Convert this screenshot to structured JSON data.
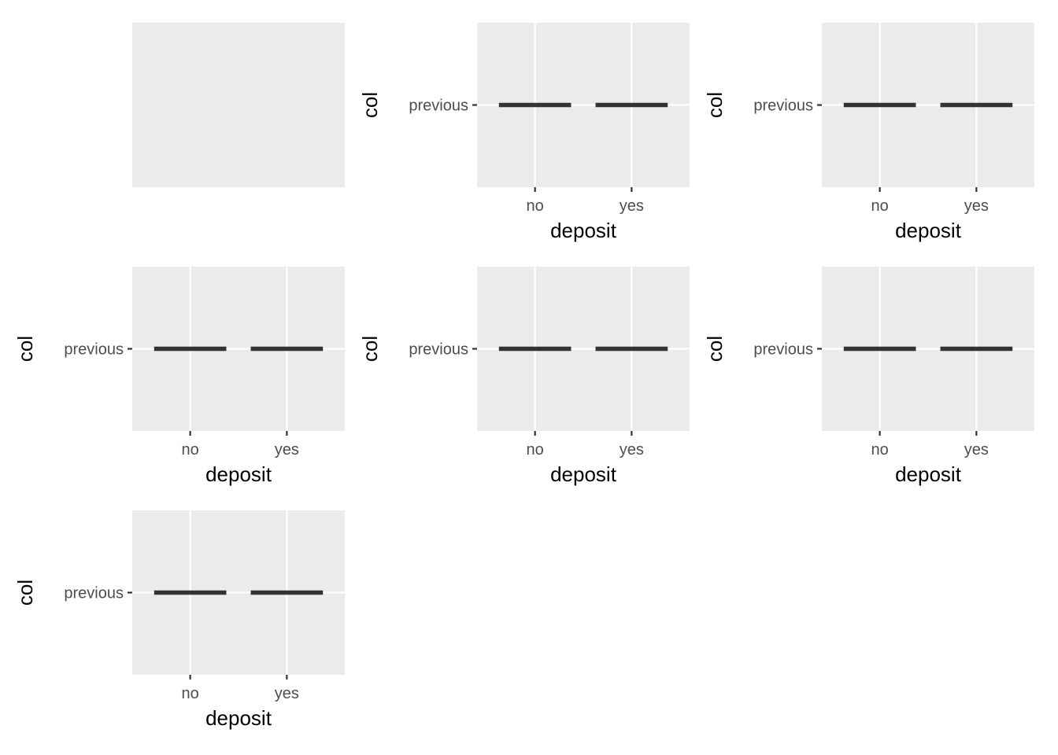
{
  "chart_data": [
    {
      "type": "blank",
      "title": "",
      "xlabel": "",
      "ylabel": "",
      "grid": true
    },
    {
      "type": "crossbar",
      "title": "",
      "xlabel": "deposit",
      "ylabel": "col",
      "categories": [
        "no",
        "yes"
      ],
      "y_categories": [
        "previous"
      ],
      "values": [
        {
          "x": "no",
          "y": "previous"
        },
        {
          "x": "yes",
          "y": "previous"
        }
      ],
      "grid": true
    },
    {
      "type": "crossbar",
      "title": "",
      "xlabel": "deposit",
      "ylabel": "col",
      "categories": [
        "no",
        "yes"
      ],
      "y_categories": [
        "previous"
      ],
      "values": [
        {
          "x": "no",
          "y": "previous"
        },
        {
          "x": "yes",
          "y": "previous"
        }
      ],
      "grid": true
    },
    {
      "type": "crossbar",
      "title": "",
      "xlabel": "deposit",
      "ylabel": "col",
      "categories": [
        "no",
        "yes"
      ],
      "y_categories": [
        "previous"
      ],
      "values": [
        {
          "x": "no",
          "y": "previous"
        },
        {
          "x": "yes",
          "y": "previous"
        }
      ],
      "grid": true
    },
    {
      "type": "crossbar",
      "title": "",
      "xlabel": "deposit",
      "ylabel": "col",
      "categories": [
        "no",
        "yes"
      ],
      "y_categories": [
        "previous"
      ],
      "values": [
        {
          "x": "no",
          "y": "previous"
        },
        {
          "x": "yes",
          "y": "previous"
        }
      ],
      "grid": true
    },
    {
      "type": "crossbar",
      "title": "",
      "xlabel": "deposit",
      "ylabel": "col",
      "categories": [
        "no",
        "yes"
      ],
      "y_categories": [
        "previous"
      ],
      "values": [
        {
          "x": "no",
          "y": "previous"
        },
        {
          "x": "yes",
          "y": "previous"
        }
      ],
      "grid": true
    },
    {
      "type": "crossbar",
      "title": "",
      "xlabel": "deposit",
      "ylabel": "col",
      "categories": [
        "no",
        "yes"
      ],
      "y_categories": [
        "previous"
      ],
      "values": [
        {
          "x": "no",
          "y": "previous"
        },
        {
          "x": "yes",
          "y": "previous"
        }
      ],
      "grid": true
    }
  ],
  "colors": {
    "panel_background": "#ebebeb",
    "grid": "#ffffff",
    "mark": "#333333",
    "tick_label": "#4d4d4d",
    "axis_title": "#000000"
  }
}
